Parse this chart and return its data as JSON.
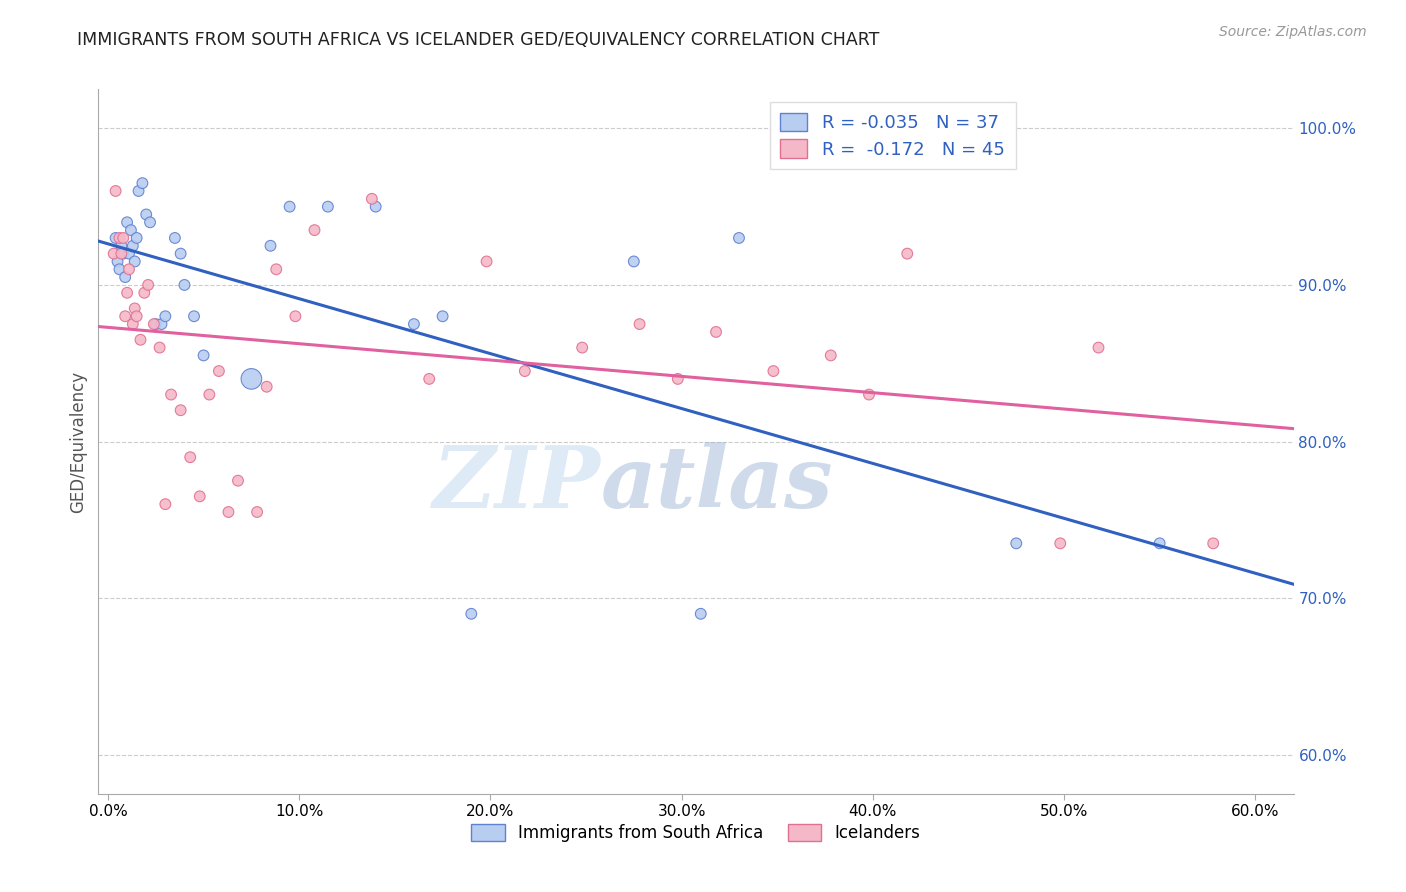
{
  "title": "IMMIGRANTS FROM SOUTH AFRICA VS ICELANDER GED/EQUIVALENCY CORRELATION CHART",
  "source": "Source: ZipAtlas.com",
  "ylabel": "GED/Equivalency",
  "x_ticks": [
    0.0,
    0.1,
    0.2,
    0.3,
    0.4,
    0.5,
    0.6
  ],
  "x_tick_labels": [
    "0.0%",
    "10.0%",
    "20.0%",
    "30.0%",
    "40.0%",
    "50.0%",
    "60.0%"
  ],
  "y_ticks": [
    0.6,
    0.7,
    0.8,
    0.9,
    1.0
  ],
  "y_tick_labels": [
    "60.0%",
    "70.0%",
    "80.0%",
    "90.0%",
    "100.0%"
  ],
  "xlim": [
    -0.005,
    0.62
  ],
  "ylim": [
    0.575,
    1.025
  ],
  "blue_R": -0.035,
  "blue_N": 37,
  "pink_R": -0.172,
  "pink_N": 45,
  "blue_color": "#b8cef0",
  "pink_color": "#f5b8c8",
  "blue_edge_color": "#6080d0",
  "pink_edge_color": "#e07090",
  "blue_line_color": "#3060c0",
  "pink_line_color": "#e060a0",
  "legend_label_blue": "Immigrants from South Africa",
  "legend_label_pink": "Icelanders",
  "watermark_zip": "ZIP",
  "watermark_atlas": "atlas",
  "blue_scatter_x": [
    0.004,
    0.005,
    0.006,
    0.007,
    0.008,
    0.009,
    0.01,
    0.011,
    0.012,
    0.013,
    0.014,
    0.015,
    0.016,
    0.018,
    0.02,
    0.022,
    0.025,
    0.028,
    0.03,
    0.035,
    0.038,
    0.04,
    0.045,
    0.05,
    0.075,
    0.085,
    0.095,
    0.115,
    0.14,
    0.16,
    0.175,
    0.19,
    0.275,
    0.31,
    0.33,
    0.475,
    0.55
  ],
  "blue_scatter_y": [
    0.93,
    0.915,
    0.91,
    0.925,
    0.92,
    0.905,
    0.94,
    0.92,
    0.935,
    0.925,
    0.915,
    0.93,
    0.96,
    0.965,
    0.945,
    0.94,
    0.875,
    0.875,
    0.88,
    0.93,
    0.92,
    0.9,
    0.88,
    0.855,
    0.84,
    0.925,
    0.95,
    0.95,
    0.95,
    0.875,
    0.88,
    0.69,
    0.915,
    0.69,
    0.93,
    0.735,
    0.735
  ],
  "blue_scatter_size": [
    60,
    60,
    60,
    60,
    60,
    60,
    60,
    60,
    60,
    60,
    60,
    60,
    60,
    60,
    60,
    60,
    60,
    60,
    60,
    60,
    60,
    60,
    60,
    60,
    220,
    60,
    60,
    60,
    60,
    60,
    60,
    60,
    60,
    60,
    60,
    60,
    60
  ],
  "pink_scatter_x": [
    0.003,
    0.004,
    0.006,
    0.007,
    0.008,
    0.009,
    0.01,
    0.011,
    0.013,
    0.014,
    0.015,
    0.017,
    0.019,
    0.021,
    0.024,
    0.027,
    0.03,
    0.033,
    0.038,
    0.043,
    0.048,
    0.053,
    0.058,
    0.063,
    0.068,
    0.078,
    0.083,
    0.088,
    0.098,
    0.108,
    0.138,
    0.168,
    0.198,
    0.218,
    0.248,
    0.278,
    0.298,
    0.318,
    0.348,
    0.378,
    0.398,
    0.418,
    0.498,
    0.518,
    0.578
  ],
  "pink_scatter_y": [
    0.92,
    0.96,
    0.93,
    0.92,
    0.93,
    0.88,
    0.895,
    0.91,
    0.875,
    0.885,
    0.88,
    0.865,
    0.895,
    0.9,
    0.875,
    0.86,
    0.76,
    0.83,
    0.82,
    0.79,
    0.765,
    0.83,
    0.845,
    0.755,
    0.775,
    0.755,
    0.835,
    0.91,
    0.88,
    0.935,
    0.955,
    0.84,
    0.915,
    0.845,
    0.86,
    0.875,
    0.84,
    0.87,
    0.845,
    0.855,
    0.83,
    0.92,
    0.735,
    0.86,
    0.735
  ],
  "pink_scatter_size": [
    60,
    60,
    60,
    60,
    60,
    60,
    60,
    60,
    60,
    60,
    60,
    60,
    60,
    60,
    60,
    60,
    60,
    60,
    60,
    60,
    60,
    60,
    60,
    60,
    60,
    60,
    60,
    60,
    60,
    60,
    60,
    60,
    60,
    60,
    60,
    60,
    60,
    60,
    60,
    60,
    60,
    60,
    60,
    60,
    60
  ]
}
